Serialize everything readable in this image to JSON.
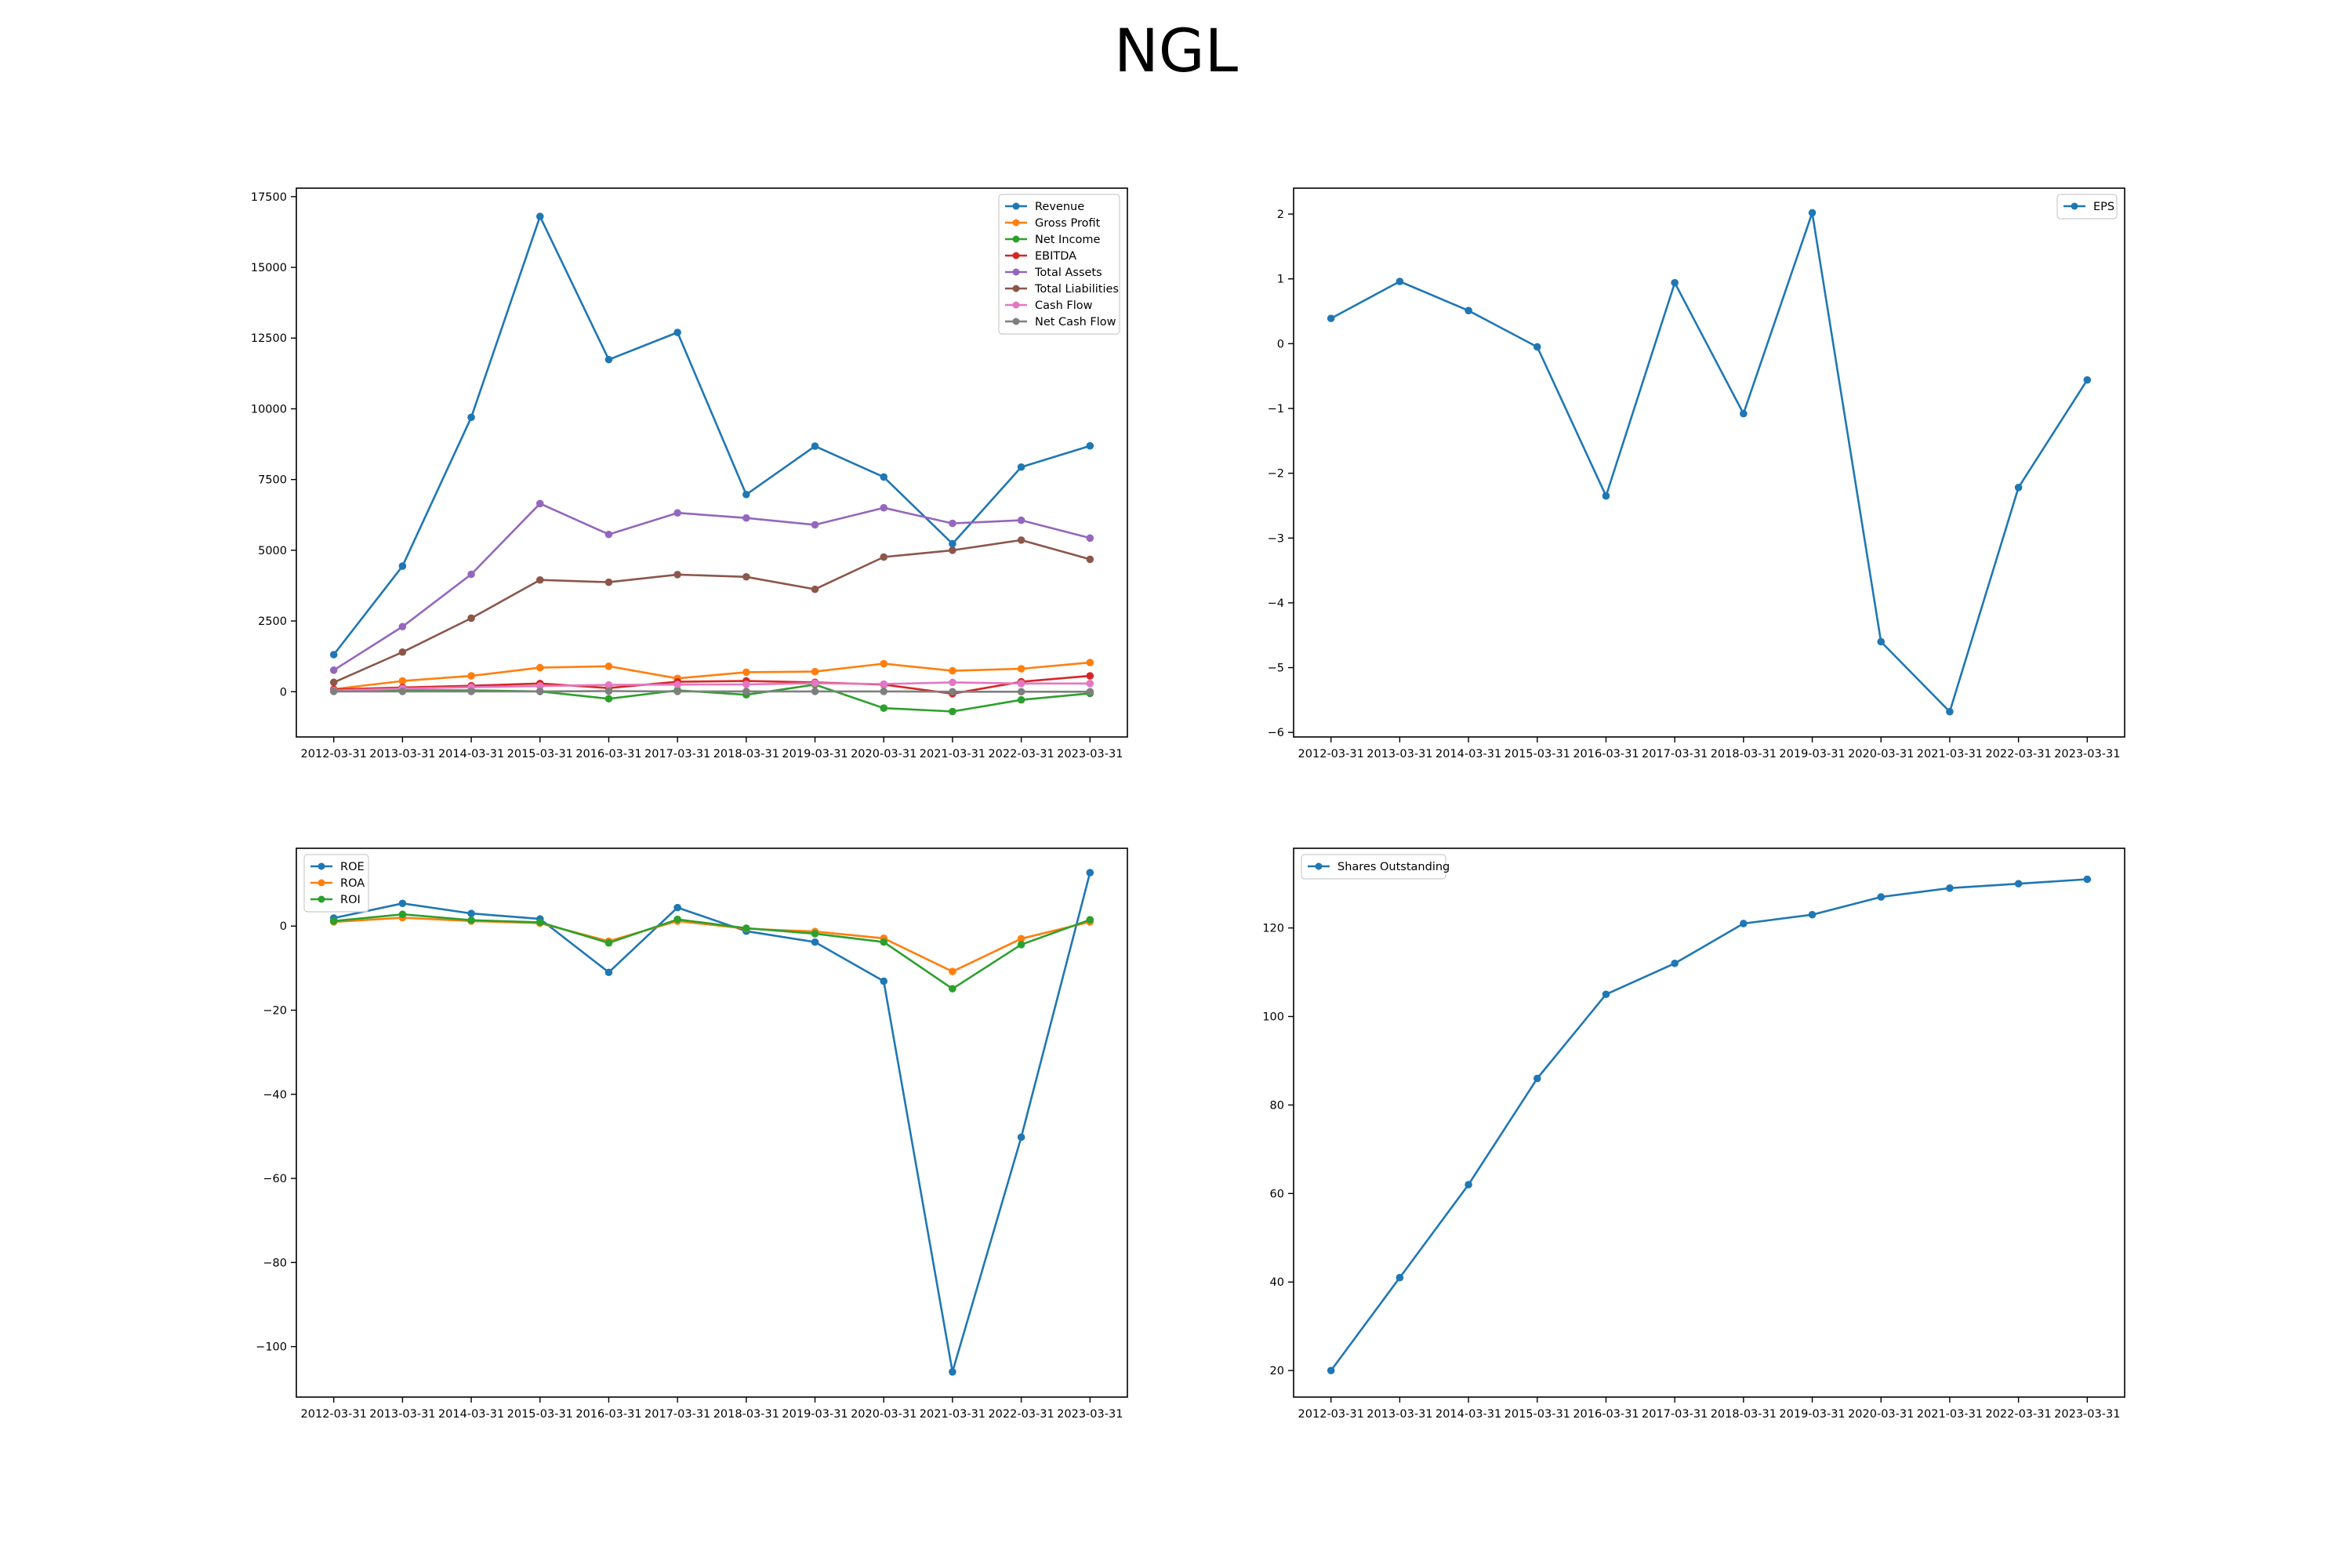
{
  "figure": {
    "title": "NGL"
  },
  "chart_data": [
    {
      "type": "line",
      "title": "",
      "xlabel": "",
      "ylabel": "",
      "x": [
        "2012-03-31",
        "2013-03-31",
        "2014-03-31",
        "2015-03-31",
        "2016-03-31",
        "2017-03-31",
        "2018-03-31",
        "2019-03-31",
        "2020-03-31",
        "2021-03-31",
        "2022-03-31",
        "2023-03-31"
      ],
      "ylim": [
        -1600,
        17800
      ],
      "yticks": [
        0,
        2500,
        5000,
        7500,
        10000,
        12500,
        15000,
        17500
      ],
      "grid": false,
      "legend": "top-right",
      "series": [
        {
          "name": "Revenue",
          "color": "#1f77b4",
          "values": [
            1310,
            4440,
            9700,
            16800,
            11740,
            12700,
            6970,
            8680,
            7590,
            5230,
            7940,
            8690
          ]
        },
        {
          "name": "Gross Profit",
          "color": "#ff7f0e",
          "values": [
            90,
            380,
            560,
            850,
            900,
            470,
            690,
            710,
            990,
            740,
            810,
            1030
          ]
        },
        {
          "name": "Net Income",
          "color": "#2ca02c",
          "values": [
            30,
            50,
            50,
            10,
            -250,
            50,
            -110,
            250,
            -580,
            -700,
            -290,
            -60
          ]
        },
        {
          "name": "EBITDA",
          "color": "#d62728",
          "values": [
            80,
            150,
            210,
            290,
            130,
            350,
            380,
            330,
            250,
            -70,
            350,
            560
          ]
        },
        {
          "name": "Total Assets",
          "color": "#9467bd",
          "values": [
            760,
            2300,
            4150,
            6650,
            5560,
            6320,
            6140,
            5900,
            6500,
            5950,
            6060,
            5430
          ]
        },
        {
          "name": "Total Liabilities",
          "color": "#8c564b",
          "values": [
            330,
            1400,
            2600,
            3950,
            3870,
            4140,
            4060,
            3620,
            4760,
            5000,
            5360,
            4680
          ]
        },
        {
          "name": "Cash Flow",
          "color": "#e377c2",
          "values": [
            40,
            110,
            160,
            200,
            240,
            250,
            260,
            300,
            270,
            330,
            290,
            290
          ]
        },
        {
          "name": "Net Cash Flow",
          "color": "#7f7f7f",
          "values": [
            10,
            10,
            10,
            10,
            20,
            10,
            10,
            10,
            10,
            0,
            0,
            0
          ]
        }
      ]
    },
    {
      "type": "line",
      "title": "",
      "xlabel": "",
      "ylabel": "",
      "x": [
        "2012-03-31",
        "2013-03-31",
        "2014-03-31",
        "2015-03-31",
        "2016-03-31",
        "2017-03-31",
        "2018-03-31",
        "2019-03-31",
        "2020-03-31",
        "2021-03-31",
        "2022-03-31",
        "2023-03-31"
      ],
      "ylim": [
        -6.07,
        2.4
      ],
      "yticks": [
        -6,
        -5,
        -4,
        -3,
        -2,
        -1,
        0,
        1,
        2
      ],
      "grid": false,
      "legend": "top-right",
      "series": [
        {
          "name": "EPS",
          "color": "#1f77b4",
          "values": [
            0.39,
            0.96,
            0.51,
            -0.05,
            -2.35,
            0.94,
            -1.08,
            2.02,
            -4.6,
            -5.68,
            -2.22,
            -0.56
          ]
        }
      ]
    },
    {
      "type": "line",
      "title": "",
      "xlabel": "",
      "ylabel": "",
      "x": [
        "2012-03-31",
        "2013-03-31",
        "2014-03-31",
        "2015-03-31",
        "2016-03-31",
        "2017-03-31",
        "2018-03-31",
        "2019-03-31",
        "2020-03-31",
        "2021-03-31",
        "2022-03-31",
        "2023-03-31"
      ],
      "ylim": [
        -112,
        18.5
      ],
      "yticks": [
        -100,
        -80,
        -60,
        -40,
        -20,
        0
      ],
      "grid": false,
      "legend": "top-left",
      "series": [
        {
          "name": "ROE",
          "color": "#1f77b4",
          "values": [
            1.9,
            5.4,
            3.0,
            1.7,
            -11.0,
            4.4,
            -1.2,
            -3.8,
            -13.1,
            -106.0,
            -50.2,
            12.7
          ]
        },
        {
          "name": "ROA",
          "color": "#ff7f0e",
          "values": [
            1.0,
            2.0,
            1.2,
            0.7,
            -3.6,
            1.2,
            -0.6,
            -1.3,
            -2.9,
            -10.8,
            -3.0,
            1.0
          ]
        },
        {
          "name": "ROI",
          "color": "#2ca02c",
          "values": [
            1.2,
            2.8,
            1.4,
            0.9,
            -4.0,
            1.6,
            -0.5,
            -1.8,
            -3.8,
            -14.9,
            -4.4,
            1.5
          ]
        }
      ]
    },
    {
      "type": "line",
      "title": "",
      "xlabel": "",
      "ylabel": "",
      "x": [
        "2012-03-31",
        "2013-03-31",
        "2014-03-31",
        "2015-03-31",
        "2016-03-31",
        "2017-03-31",
        "2018-03-31",
        "2019-03-31",
        "2020-03-31",
        "2021-03-31",
        "2022-03-31",
        "2023-03-31"
      ],
      "ylim": [
        14,
        138
      ],
      "yticks": [
        20,
        40,
        60,
        80,
        100,
        120
      ],
      "grid": false,
      "legend": "top-left",
      "series": [
        {
          "name": "Shares Outstanding",
          "color": "#1f77b4",
          "values": [
            20,
            41,
            62,
            86,
            105,
            112,
            121,
            123,
            127,
            129,
            130,
            131
          ]
        }
      ]
    }
  ]
}
